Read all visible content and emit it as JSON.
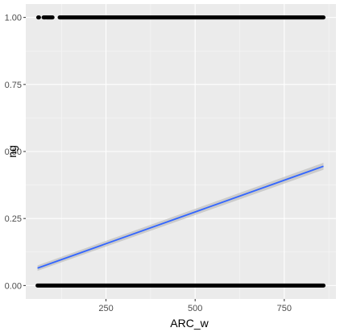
{
  "chart_data": {
    "type": "scatter",
    "xlabel": "ARC_w",
    "ylabel": "ng",
    "xlim": [
      25,
      895
    ],
    "ylim": [
      -0.05,
      1.05
    ],
    "x_ticks": [
      250,
      500,
      750
    ],
    "x_tick_labels": [
      "250",
      "500",
      "750"
    ],
    "y_ticks": [
      0,
      0.25,
      0.5,
      0.75,
      1
    ],
    "y_tick_labels": [
      "0.00",
      "0.25",
      "0.50",
      "0.75",
      "1.00"
    ],
    "grid": true,
    "point_groups": [
      {
        "y": 1,
        "x_ranges": [
          [
            60,
            62
          ],
          [
            75,
            80
          ],
          [
            83,
            100
          ],
          [
            120,
            860
          ]
        ]
      },
      {
        "y": 0,
        "x_ranges": [
          [
            58,
            860
          ]
        ]
      }
    ],
    "trend_line": {
      "x": [
        58,
        860
      ],
      "y": [
        0.065,
        0.445
      ],
      "ci_lower": [
        0.055,
        0.432
      ],
      "ci_upper": [
        0.075,
        0.458
      ]
    },
    "colors": {
      "panel": "#ebebeb",
      "grid_major": "#ffffff",
      "points": "#000000",
      "trend_line": "#3366ff",
      "ci_band": "#bdbdbd"
    }
  }
}
